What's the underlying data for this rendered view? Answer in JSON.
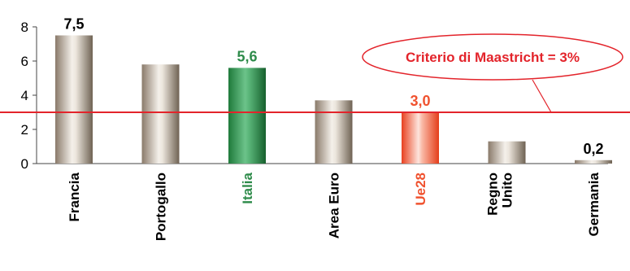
{
  "chart_data": {
    "type": "bar",
    "categories": [
      [
        "Francia"
      ],
      [
        "Portogallo"
      ],
      [
        "Italia"
      ],
      [
        "Area Euro"
      ],
      [
        "Ue28"
      ],
      [
        "Regno",
        "Unito"
      ],
      [
        "Germania"
      ]
    ],
    "values": [
      7.5,
      5.8,
      5.6,
      3.7,
      3.0,
      1.3,
      0.2
    ],
    "data_labels": [
      "7,5",
      null,
      "5,6",
      null,
      "3,0",
      null,
      "0,2"
    ],
    "ylim": [
      0,
      8
    ],
    "yticks": [
      0,
      2,
      4,
      6,
      8
    ],
    "ytick_labels": [
      "0",
      "2",
      "4",
      "6",
      "8"
    ],
    "reference_line": {
      "value": 3,
      "color": "#e3242b"
    },
    "callout": {
      "text": "Criterio di Maastricht = 3%"
    },
    "grid": false,
    "colors": {
      "default_bar": "#a39384",
      "highlight_bar": "#2e8b4a",
      "ue_bar": "#f0522f",
      "callout": "#e3242b"
    },
    "bar_styles": [
      "default",
      "default",
      "highlight",
      "default",
      "ue",
      "default",
      "default"
    ]
  }
}
